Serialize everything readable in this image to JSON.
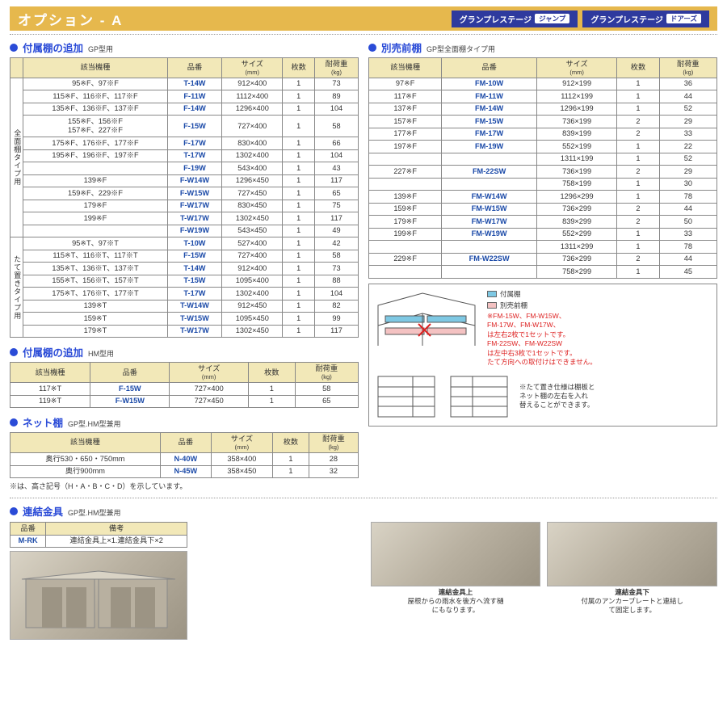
{
  "header": {
    "title": "オプション - A",
    "badge1": "グランプレステージ",
    "badge1_sub": "ジャンプ",
    "badge2": "グランプレステージ",
    "badge2_sub": "ドアーズ"
  },
  "sec1": {
    "title": "付属棚の追加",
    "sub": "GP型用",
    "cols": [
      "該当機種",
      "品番",
      "サイズ\n(mm)",
      "枚数",
      "耐荷重\n(kg)"
    ],
    "group_a": "全面棚タイプ用",
    "group_b": "たて置きタイプ用",
    "rows_a": [
      [
        "95※F、97※F",
        "T-14W",
        "912×400",
        "1",
        "73"
      ],
      [
        "115※F、116※F、117※F",
        "F-11W",
        "1112×400",
        "1",
        "89"
      ],
      [
        "135※F、136※F、137※F",
        "F-14W",
        "1296×400",
        "1",
        "104"
      ],
      [
        "155※F、156※F\n157※F、227※F",
        "F-15W",
        "727×400",
        "1",
        "58"
      ],
      [
        "175※F、176※F、177※F",
        "F-17W",
        "830×400",
        "1",
        "66"
      ],
      [
        "195※F、196※F、197※F",
        "T-17W",
        "1302×400",
        "1",
        "104"
      ],
      [
        "",
        "F-19W",
        "543×400",
        "1",
        "43"
      ],
      [
        "139※F",
        "F-W14W",
        "1296×450",
        "1",
        "117"
      ],
      [
        "159※F、229※F",
        "F-W15W",
        "727×450",
        "1",
        "65"
      ],
      [
        "179※F",
        "F-W17W",
        "830×450",
        "1",
        "75"
      ],
      [
        "199※F",
        "T-W17W",
        "1302×450",
        "1",
        "117"
      ],
      [
        "",
        "F-W19W",
        "543×450",
        "1",
        "49"
      ]
    ],
    "rows_b": [
      [
        "95※T、97※T",
        "T-10W",
        "527×400",
        "1",
        "42"
      ],
      [
        "115※T、116※T、117※T",
        "F-15W",
        "727×400",
        "1",
        "58"
      ],
      [
        "135※T、136※T、137※T",
        "T-14W",
        "912×400",
        "1",
        "73"
      ],
      [
        "155※T、156※T、157※T",
        "T-15W",
        "1095×400",
        "1",
        "88"
      ],
      [
        "175※T、176※T、177※T",
        "T-17W",
        "1302×400",
        "1",
        "104"
      ],
      [
        "139※T",
        "T-W14W",
        "912×450",
        "1",
        "82"
      ],
      [
        "159※T",
        "T-W15W",
        "1095×450",
        "1",
        "99"
      ],
      [
        "179※T",
        "T-W17W",
        "1302×450",
        "1",
        "117"
      ]
    ]
  },
  "sec2": {
    "title": "付属棚の追加",
    "sub": "HM型用",
    "rows": [
      [
        "117※T",
        "F-15W",
        "727×400",
        "1",
        "58"
      ],
      [
        "119※T",
        "F-W15W",
        "727×450",
        "1",
        "65"
      ]
    ]
  },
  "sec3": {
    "title": "ネット棚",
    "sub": "GP型.HM型兼用",
    "rows": [
      [
        "奥行530・650・750mm",
        "N-40W",
        "358×400",
        "1",
        "28"
      ],
      [
        "奥行900mm",
        "N-45W",
        "358×450",
        "1",
        "32"
      ]
    ],
    "note": "※は、高さ記号（H・A・B・C・D）を示しています。"
  },
  "sec4": {
    "title": "別売前棚",
    "sub": "GP型全面棚タイプ用",
    "rows": [
      [
        "97※F",
        "FM-10W",
        "912×199",
        "1",
        "36"
      ],
      [
        "117※F",
        "FM-11W",
        "1112×199",
        "1",
        "44"
      ],
      [
        "137※F",
        "FM-14W",
        "1296×199",
        "1",
        "52"
      ],
      [
        "157※F",
        "FM-15W",
        "736×199",
        "2",
        "29"
      ],
      [
        "177※F",
        "FM-17W",
        "839×199",
        "2",
        "33"
      ],
      [
        "197※F",
        "FM-19W",
        "552×199",
        "1",
        "22"
      ],
      [
        "",
        "",
        "1311×199",
        "1",
        "52"
      ],
      [
        "227※F",
        "FM-22SW",
        "736×199",
        "2",
        "29"
      ],
      [
        "",
        "",
        "758×199",
        "1",
        "30"
      ],
      [
        "139※F",
        "FM-W14W",
        "1296×299",
        "1",
        "78"
      ],
      [
        "159※F",
        "FM-W15W",
        "736×299",
        "2",
        "44"
      ],
      [
        "179※F",
        "FM-W17W",
        "839×299",
        "2",
        "50"
      ],
      [
        "199※F",
        "FM-W19W",
        "552×299",
        "1",
        "33"
      ],
      [
        "",
        "",
        "1311×299",
        "1",
        "78"
      ],
      [
        "229※F",
        "FM-W22SW",
        "736×299",
        "2",
        "44"
      ],
      [
        "",
        "",
        "758×299",
        "1",
        "45"
      ]
    ]
  },
  "diagram": {
    "legend_blue": "付属棚",
    "legend_pink": "別売前棚",
    "note_red": "※FM-15W、FM-W15W、\nFM-17W、FM-W17W、\nは左右2枚で1セットです。\nFM-22SW、FM-W22SW\nは左中右3枚で1セットです。\nたて方向への取付けはできません。",
    "note_side": "※たて置き仕様は棚板と\nネット棚の左右を入れ\n替えることができます。"
  },
  "sec5": {
    "title": "連結金具",
    "sub": "GP型.HM型兼用",
    "cols": [
      "品番",
      "備考"
    ],
    "row": [
      "M-RK",
      "連結金具上×1.連結金具下×2"
    ],
    "cap_b_title": "連結金具上",
    "cap_b": "屋根からの雨水を後方へ流す樋\nにもなります。",
    "cap_c_title": "連結金具下",
    "cap_c": "付属のアンカープレートと連結し\nて固定します。"
  }
}
